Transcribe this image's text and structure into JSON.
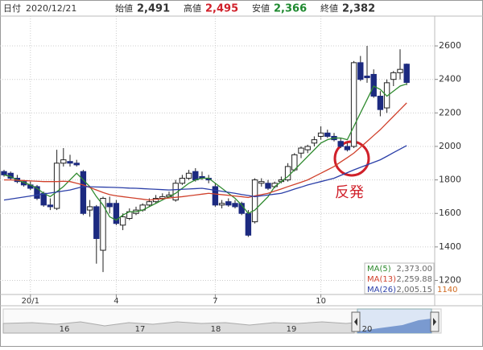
{
  "header": {
    "date_label": "日付",
    "date": "2020/12/21",
    "open_label": "始値",
    "open": "2,491",
    "high_label": "高値",
    "high": "2,495",
    "low_label": "安値",
    "low": "2,366",
    "close_label": "終値",
    "close": "2,382"
  },
  "chart_data": {
    "type": "candlestick",
    "categories": [
      null,
      null,
      null,
      null,
      "20/1",
      null,
      null,
      null,
      null,
      null,
      null,
      null,
      null,
      null,
      null,
      null,
      null,
      "4",
      null,
      null,
      null,
      null,
      null,
      null,
      null,
      null,
      null,
      null,
      null,
      null,
      null,
      null,
      "7",
      null,
      null,
      null,
      null,
      null,
      null,
      null,
      null,
      null,
      null,
      null,
      null,
      null,
      null,
      null,
      "10",
      null,
      null,
      null,
      null,
      null,
      null,
      null,
      null,
      null,
      null,
      null,
      null,
      null
    ],
    "open": [
      1850,
      1840,
      1810,
      1790,
      1770,
      1760,
      1720,
      1650,
      1630,
      1900,
      1910,
      1900,
      1850,
      1620,
      1640,
      1380,
      1660,
      1660,
      1530,
      1570,
      1600,
      1620,
      1650,
      1670,
      1690,
      1700,
      1680,
      1780,
      1810,
      1850,
      1820,
      1810,
      1760,
      1650,
      1670,
      1660,
      1660,
      1600,
      1550,
      1780,
      1780,
      1760,
      1790,
      1800,
      1860,
      1960,
      1980,
      2020,
      2060,
      2080,
      2060,
      2030,
      2000,
      2000,
      2500,
      2420,
      2430,
      2300,
      2230,
      2400,
      2440,
      2491
    ],
    "high": [
      1860,
      1850,
      1830,
      1800,
      1790,
      1770,
      1730,
      1690,
      1980,
      1990,
      1950,
      1920,
      1860,
      1680,
      1650,
      1700,
      1700,
      1680,
      1600,
      1630,
      1640,
      1660,
      1690,
      1710,
      1720,
      1730,
      1800,
      1830,
      1860,
      1870,
      1850,
      1830,
      1780,
      1680,
      1690,
      1680,
      1670,
      1620,
      1810,
      1810,
      1800,
      1790,
      1820,
      1900,
      1960,
      2000,
      2010,
      2060,
      2120,
      2100,
      2080,
      2050,
      2020,
      2510,
      2540,
      2600,
      2460,
      2330,
      2400,
      2450,
      2580,
      2495
    ],
    "low": [
      1820,
      1800,
      1780,
      1760,
      1740,
      1680,
      1640,
      1620,
      1620,
      1880,
      1880,
      1880,
      1590,
      1580,
      1300,
      1250,
      1600,
      1530,
      1500,
      1560,
      1590,
      1610,
      1640,
      1660,
      1680,
      1690,
      1670,
      1770,
      1800,
      1790,
      1800,
      1780,
      1640,
      1630,
      1640,
      1630,
      1590,
      1460,
      1540,
      1760,
      1740,
      1750,
      1780,
      1790,
      1850,
      1930,
      1960,
      2000,
      2040,
      2050,
      2030,
      1990,
      1970,
      1990,
      2390,
      2380,
      2290,
      2180,
      2200,
      2360,
      2400,
      2366
    ],
    "close": [
      1830,
      1810,
      1790,
      1770,
      1750,
      1690,
      1650,
      1640,
      1900,
      1920,
      1900,
      1890,
      1600,
      1640,
      1450,
      1690,
      1640,
      1540,
      1580,
      1610,
      1620,
      1650,
      1670,
      1690,
      1700,
      1710,
      1780,
      1810,
      1840,
      1800,
      1810,
      1800,
      1650,
      1660,
      1650,
      1640,
      1600,
      1470,
      1800,
      1790,
      1750,
      1780,
      1800,
      1880,
      1950,
      1990,
      2000,
      2040,
      2080,
      2060,
      2040,
      2000,
      1980,
      2500,
      2400,
      2410,
      2300,
      2220,
      2380,
      2440,
      2460,
      2382
    ],
    "up_color": "#ffffff",
    "down_color": "#1c2a80",
    "series": [
      {
        "name": "MA(5)",
        "color": "#2f8a2f",
        "value_label": "2,373.00",
        "values": [
          1830,
          1820,
          1800,
          1785,
          1770,
          1750,
          1720,
          1700,
          1730,
          1760,
          1800,
          1840,
          1800,
          1760,
          1700,
          1650,
          1580,
          1560,
          1590,
          1610,
          1610,
          1620,
          1640,
          1660,
          1680,
          1700,
          1720,
          1750,
          1780,
          1800,
          1810,
          1810,
          1780,
          1750,
          1720,
          1690,
          1650,
          1600,
          1620,
          1660,
          1700,
          1760,
          1790,
          1820,
          1860,
          1900,
          1940,
          1980,
          2020,
          2040,
          2050,
          2050,
          2040,
          2120,
          2200,
          2280,
          2360,
          2340,
          2300,
          2330,
          2360,
          2373.0
        ]
      },
      {
        "name": "MA(13)",
        "color": "#d0412c",
        "value_label": "2,259.88",
        "values": [
          1800,
          1800,
          1798,
          1796,
          1794,
          1792,
          1790,
          1790,
          1790,
          1792,
          1790,
          1780,
          1770,
          1755,
          1740,
          1725,
          1712,
          1705,
          1700,
          1695,
          1690,
          1685,
          1680,
          1684,
          1688,
          1692,
          1696,
          1700,
          1705,
          1710,
          1715,
          1720,
          1716,
          1712,
          1708,
          1704,
          1700,
          1695,
          1705,
          1712,
          1720,
          1733,
          1746,
          1760,
          1773,
          1786,
          1800,
          1820,
          1840,
          1860,
          1880,
          1907,
          1933,
          1960,
          1995,
          2030,
          2065,
          2100,
          2140,
          2180,
          2220,
          2259.88
        ]
      },
      {
        "name": "MA(26)",
        "color": "#2b3fa8",
        "value_label": "2,005.15",
        "values": [
          1680,
          1686,
          1692,
          1698,
          1704,
          1710,
          1716,
          1722,
          1728,
          1734,
          1740,
          1750,
          1760,
          1759,
          1758,
          1757,
          1756,
          1755,
          1753,
          1751,
          1750,
          1748,
          1746,
          1744,
          1742,
          1740,
          1742,
          1744,
          1746,
          1748,
          1750,
          1744,
          1738,
          1732,
          1726,
          1720,
          1713,
          1707,
          1700,
          1705,
          1710,
          1715,
          1720,
          1732,
          1745,
          1757,
          1770,
          1780,
          1790,
          1800,
          1810,
          1827,
          1843,
          1860,
          1875,
          1890,
          1905,
          1920,
          1941,
          1963,
          1984,
          2005.15
        ]
      }
    ],
    "ylim": [
      1116,
      2778
    ],
    "yticks": [
      1200,
      1400,
      1600,
      1800,
      2000,
      2200,
      2400,
      2600
    ],
    "grid": true,
    "annotation": "反発",
    "extra_label": "1140"
  },
  "navigator": {
    "labels": [
      "16",
      "17",
      "18",
      "19",
      "20"
    ]
  }
}
